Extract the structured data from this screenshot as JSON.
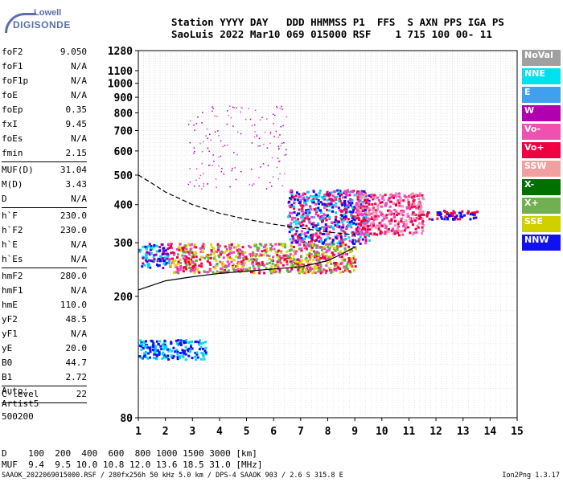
{
  "logo": {
    "line1": "Lowell",
    "line2": "DIGISONDE"
  },
  "header": {
    "line1": "Station YYYY DAY   DDD HHMMSS P1  FFS  S AXN PPS IGA PS",
    "line2": "SaoLuis 2022 Mar10 069 015000 RSF    1 715 100 00- 11"
  },
  "params": [
    {
      "name": "foF2",
      "value": "9.050"
    },
    {
      "name": "foF1",
      "value": "N/A"
    },
    {
      "name": "foF1p",
      "value": "N/A"
    },
    {
      "name": "foE",
      "value": "N/A"
    },
    {
      "name": "foEp",
      "value": "0.35"
    },
    {
      "name": "fxI",
      "value": "9.45"
    },
    {
      "name": "foEs",
      "value": "N/A"
    },
    {
      "name": "fmin",
      "value": "2.15"
    },
    {
      "sep": true
    },
    {
      "name": "MUF(D)",
      "value": "31.04"
    },
    {
      "name": "M(D)",
      "value": "3.43"
    },
    {
      "name": "D",
      "value": "N/A"
    },
    {
      "sep": true
    },
    {
      "name": "h`F",
      "value": "230.0"
    },
    {
      "name": "h`F2",
      "value": "230.0"
    },
    {
      "name": "h`E",
      "value": "N/A"
    },
    {
      "name": "h`Es",
      "value": "N/A"
    },
    {
      "sep": true
    },
    {
      "name": "hmF2",
      "value": "280.0"
    },
    {
      "name": "hmF1",
      "value": "N/A"
    },
    {
      "name": "hmE",
      "value": "110.0"
    },
    {
      "name": "yF2",
      "value": "48.5"
    },
    {
      "name": "yF1",
      "value": "N/A"
    },
    {
      "name": "yE",
      "value": "20.0"
    },
    {
      "name": "B0",
      "value": "44.7"
    },
    {
      "name": "B1",
      "value": "2.72"
    },
    {
      "sep": true
    },
    {
      "name": "C-level",
      "value": "22"
    },
    {
      "sep": true
    }
  ],
  "extra": [
    "Auto:",
    "Artist5",
    "500200"
  ],
  "legend": [
    {
      "label": "NoVal",
      "color": "#a0a0a0"
    },
    {
      "label": "NNE",
      "color": "#00e0f0"
    },
    {
      "label": "E",
      "color": "#40a0f0"
    },
    {
      "label": "W",
      "color": "#b000b0"
    },
    {
      "label": "Vo-",
      "color": "#f050b0"
    },
    {
      "label": "Vo+",
      "color": "#f00040"
    },
    {
      "label": "SSW",
      "color": "#f0a0a0"
    },
    {
      "label": "X-",
      "color": "#007000"
    },
    {
      "label": "X+",
      "color": "#70b050"
    },
    {
      "label": "SSE",
      "color": "#d0d000"
    },
    {
      "label": "NNW",
      "color": "#1010f0"
    }
  ],
  "footer": {
    "line1": "D    100  200  400  600  800 1000 1500 3000 [km]",
    "line2": "MUF  9.4  9.5 10.0 10.8 12.0 13.6 18.5 31.0 [MHz]",
    "line3": "SAAOK_2022069015000.RSF / 280fx256h 50 kHz 5.0 km / DPS-4 SAAOK 903 / 2.6 S 315.8 E",
    "version": "Ion2Png 1.3.17"
  },
  "chart_data": {
    "type": "scatter",
    "x_ticks": [
      1,
      2,
      3,
      4,
      5,
      6,
      7,
      8,
      9,
      10,
      11,
      12,
      13,
      14,
      15
    ],
    "y_ticks": [
      80,
      200,
      300,
      400,
      500,
      600,
      700,
      800,
      900,
      1000,
      1100,
      1280
    ],
    "xlim": [
      1,
      15
    ],
    "ylim": [
      80,
      1280
    ],
    "y_scale": "log",
    "grid": true,
    "legend_position": "right",
    "traces": [
      {
        "name": "o-trace lower edge",
        "x": [
          1.0,
          2.0,
          3.0,
          4.0,
          5.0,
          6.0,
          7.0,
          8.0,
          8.5,
          9.0
        ],
        "y": [
          210,
          225,
          232,
          238,
          242,
          246,
          250,
          262,
          275,
          290
        ]
      },
      {
        "name": "profile",
        "x": [
          1.0,
          1.5,
          2.0,
          3.0,
          4.0,
          5.0,
          6.0,
          7.0,
          8.0,
          8.5,
          9.0,
          9.05
        ],
        "y": [
          500,
          470,
          440,
          400,
          375,
          358,
          345,
          335,
          325,
          322,
          318,
          300
        ]
      }
    ],
    "echo_regions": [
      {
        "x": [
          1.0,
          2.1
        ],
        "y": [
          250,
          300
        ],
        "colors": [
          "blue",
          "purple",
          "cyan"
        ]
      },
      {
        "x": [
          2.1,
          9.0
        ],
        "y": [
          240,
          300
        ],
        "colors": [
          "magenta",
          "red",
          "green",
          "yellow"
        ]
      },
      {
        "x": [
          6.5,
          9.5
        ],
        "y": [
          300,
          450
        ],
        "colors": [
          "blue",
          "magenta",
          "red",
          "cyan"
        ]
      },
      {
        "x": [
          9.0,
          11.5
        ],
        "y": [
          320,
          440
        ],
        "colors": [
          "red",
          "magenta",
          "pink"
        ]
      },
      {
        "x": [
          11.5,
          13.5
        ],
        "y": [
          360,
          385
        ],
        "colors": [
          "red",
          "blue"
        ]
      },
      {
        "x": [
          2.8,
          6.5
        ],
        "y": [
          450,
          850
        ],
        "colors": [
          "purple",
          "magenta"
        ]
      },
      {
        "x": [
          1.0,
          3.5
        ],
        "y": [
          125,
          145
        ],
        "colors": [
          "blue",
          "cyan"
        ]
      }
    ]
  }
}
